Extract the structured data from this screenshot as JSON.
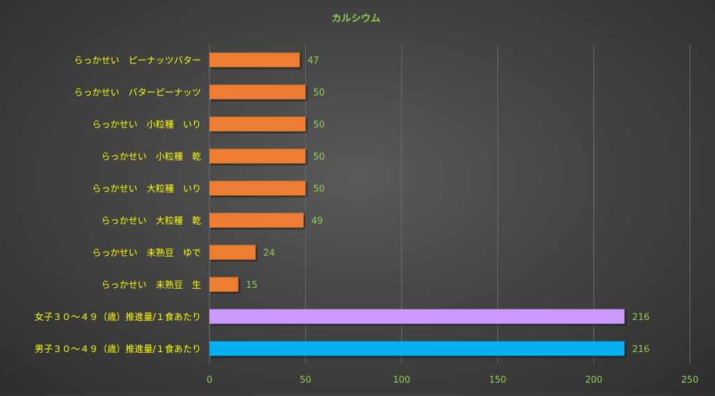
{
  "chart_data": {
    "type": "bar",
    "orientation": "horizontal",
    "title": "カルシウム",
    "xlabel": "",
    "ylabel": "",
    "xlim": [
      0,
      250
    ],
    "ticks": [
      0,
      50,
      100,
      150,
      200,
      250
    ],
    "grid": true,
    "legend": "none",
    "categories": [
      "らっかせい　ピーナッツバター",
      "らっかせい　バターピーナッツ",
      "らっかせい　小粒種　いり",
      "らっかせい　小粒種　乾",
      "らっかせい　大粒種　いり",
      "らっかせい　大粒種　乾",
      "らっかせい　未熟豆　ゆで",
      "らっかせい　未熟豆　生",
      "女子３０～４９（歳）推進量/１食あたり",
      "男子３０～４９（歳）推進量/１食あたり"
    ],
    "values": [
      47,
      50,
      50,
      50,
      50,
      49,
      24,
      15,
      216,
      216
    ],
    "bar_colors": [
      "#ed7d31",
      "#ed7d31",
      "#ed7d31",
      "#ed7d31",
      "#ed7d31",
      "#ed7d31",
      "#ed7d31",
      "#ed7d31",
      "#cc99ff",
      "#00b0f0"
    ]
  },
  "colors": {
    "title": "#92d050",
    "category_labels": "#ffff00",
    "value_labels": "#92d050",
    "tick_labels": "#92d050",
    "gridlines": "#6e6e6e"
  }
}
